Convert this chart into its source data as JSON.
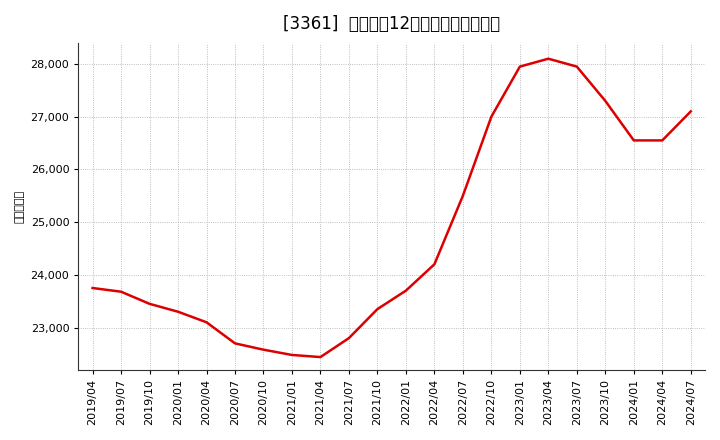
{
  "title": "[3361]  売上高の12か月移動合計の推移",
  "ylabel": "（百万円）",
  "line_color": "#dd0000",
  "background_color": "#ffffff",
  "plot_bg_color": "#ffffff",
  "grid_color": "#aaaaaa",
  "dates": [
    "2019/04",
    "2019/07",
    "2019/10",
    "2020/01",
    "2020/04",
    "2020/07",
    "2020/10",
    "2021/01",
    "2021/04",
    "2021/07",
    "2021/10",
    "2022/01",
    "2022/04",
    "2022/07",
    "2022/10",
    "2023/01",
    "2023/04",
    "2023/07",
    "2023/10",
    "2024/01",
    "2024/04",
    "2024/07"
  ],
  "values": [
    23750,
    23680,
    23450,
    23300,
    23100,
    22700,
    22580,
    22480,
    22440,
    22800,
    23350,
    23700,
    24200,
    25500,
    27000,
    27950,
    28100,
    27950,
    27300,
    26550,
    26550,
    27100
  ],
  "yticks": [
    23000,
    24000,
    25000,
    26000,
    27000,
    28000
  ],
  "ylim": [
    22200,
    28400
  ],
  "title_fontsize": 12,
  "axis_fontsize": 8,
  "ylabel_fontsize": 8,
  "linewidth": 1.8
}
